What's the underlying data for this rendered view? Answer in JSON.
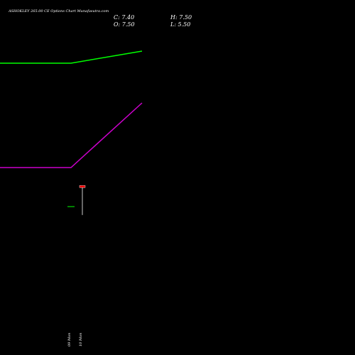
{
  "title": "ASHOKLEY 265.00 CE Options Chart Munafasutra.com",
  "ohlc": {
    "c_label": "C: 7.40",
    "h_label": "H: 7.50",
    "o_label": "O: 7.50",
    "l_label": "L: 5.50"
  },
  "chart_data": {
    "type": "line",
    "x": [
      "09 Mon",
      "10 Mon"
    ],
    "title": "ASHOKLEY 265.00 CE Options Chart Munafasutra.com",
    "series": [
      {
        "color": "#00ff00",
        "values": [
          null,
          null
        ]
      },
      {
        "color": "#cc00cc",
        "values": [
          null,
          null
        ]
      }
    ],
    "candles": [
      {
        "x": "09 Mon",
        "open": null,
        "high": null,
        "low": null,
        "close": null,
        "color": "#00aa00"
      },
      {
        "x": "10 Mon",
        "open": 7.5,
        "high": 7.5,
        "low": 5.5,
        "close": 7.4,
        "color": "#ff0000"
      }
    ],
    "y_scale": {
      "top_value": 8.5,
      "bottom_value": 5.0
    },
    "grid": false,
    "legend": "none"
  },
  "colors": {
    "background": "#000000",
    "text": "#ffffff",
    "green_line": "#00ff00",
    "magenta_line": "#cc00cc",
    "bear_candle": "#ff0000",
    "bull_candle": "#00aa00",
    "wick": "#ffffff"
  }
}
